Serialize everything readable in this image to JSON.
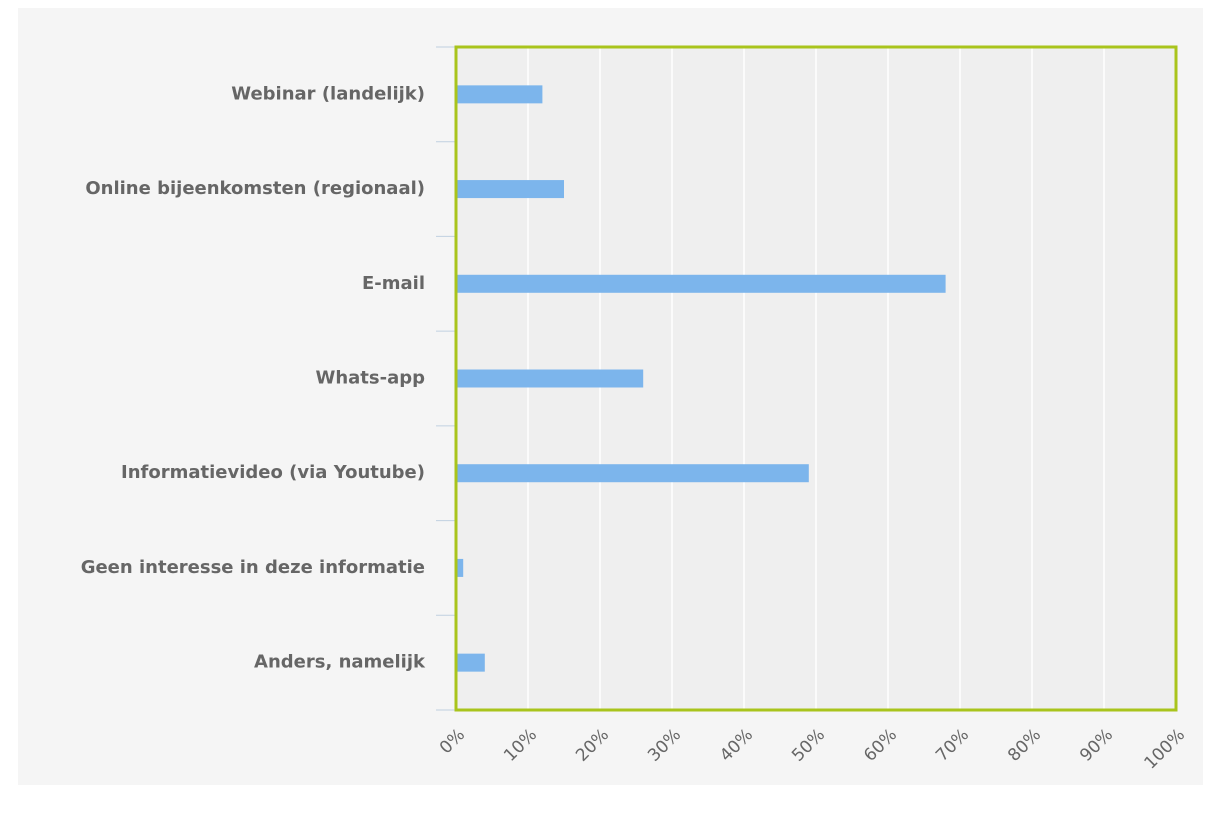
{
  "chart_data": {
    "type": "bar",
    "orientation": "horizontal",
    "categories": [
      "Webinar (landelijk)",
      "Online bijeenkomsten (regionaal)",
      "E-mail",
      "Whats-app",
      "Informatievideo (via Youtube)",
      "Geen interesse in deze informatie",
      "Anders, namelijk"
    ],
    "values": [
      12,
      15,
      68,
      26,
      49,
      1,
      4
    ],
    "color": "#7cb5ec",
    "xlim": [
      0,
      100
    ],
    "xticks": [
      {
        "value": 0,
        "label": "0%"
      },
      {
        "value": 10,
        "label": "10%"
      },
      {
        "value": 20,
        "label": "20%"
      },
      {
        "value": 30,
        "label": "30%"
      },
      {
        "value": 40,
        "label": "40%"
      },
      {
        "value": 50,
        "label": "50%"
      },
      {
        "value": 60,
        "label": "60%"
      },
      {
        "value": 70,
        "label": "70%"
      },
      {
        "value": 80,
        "label": "80%"
      },
      {
        "value": 90,
        "label": "90%"
      },
      {
        "value": 100,
        "label": "100%"
      }
    ],
    "grid": true
  }
}
